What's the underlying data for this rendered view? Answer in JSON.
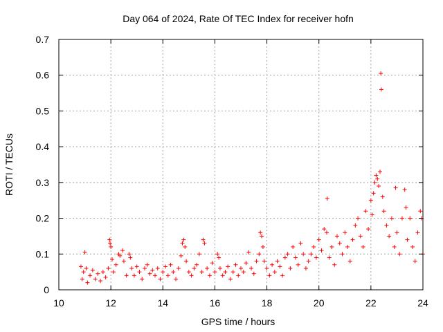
{
  "chart_data": {
    "type": "scatter",
    "title": "Day 064 of 2024, Rate Of TEC Index for receiver hofn",
    "xlabel": "GPS time / hours",
    "ylabel": "ROTI / TECUs",
    "xlim": [
      10,
      24
    ],
    "ylim": [
      0,
      0.7
    ],
    "x_ticks": [
      10,
      12,
      14,
      16,
      18,
      20,
      22,
      24
    ],
    "y_ticks": [
      0,
      0.1,
      0.2,
      0.3,
      0.4,
      0.5,
      0.6,
      0.7
    ],
    "x_tick_labels": [
      "10",
      "12",
      "14",
      "16",
      "18",
      "20",
      "22",
      "24"
    ],
    "y_tick_labels": [
      "0",
      "0.1",
      "0.2",
      "0.3",
      "0.4",
      "0.5",
      "0.6",
      "0.7"
    ],
    "grid": true,
    "marker": "+",
    "color": "#ff0000",
    "series": [
      {
        "values_description": "ROTI samples",
        "points": [
          [
            10.85,
            0.065
          ],
          [
            10.9,
            0.03
          ],
          [
            10.95,
            0.05
          ],
          [
            11.0,
            0.105
          ],
          [
            11.05,
            0.06
          ],
          [
            11.1,
            0.02
          ],
          [
            11.2,
            0.04
          ],
          [
            11.3,
            0.055
          ],
          [
            11.4,
            0.03
          ],
          [
            11.5,
            0.045
          ],
          [
            11.6,
            0.025
          ],
          [
            11.7,
            0.05
          ],
          [
            11.8,
            0.035
          ],
          [
            11.9,
            0.06
          ],
          [
            11.95,
            0.14
          ],
          [
            11.97,
            0.13
          ],
          [
            12.0,
            0.12
          ],
          [
            12.05,
            0.085
          ],
          [
            12.1,
            0.05
          ],
          [
            12.2,
            0.07
          ],
          [
            12.3,
            0.1
          ],
          [
            12.35,
            0.095
          ],
          [
            12.45,
            0.11
          ],
          [
            12.5,
            0.08
          ],
          [
            12.6,
            0.04
          ],
          [
            12.7,
            0.1
          ],
          [
            12.75,
            0.09
          ],
          [
            12.8,
            0.06
          ],
          [
            12.9,
            0.04
          ],
          [
            13.0,
            0.065
          ],
          [
            13.1,
            0.05
          ],
          [
            13.2,
            0.03
          ],
          [
            13.3,
            0.06
          ],
          [
            13.4,
            0.07
          ],
          [
            13.5,
            0.045
          ],
          [
            13.6,
            0.055
          ],
          [
            13.7,
            0.04
          ],
          [
            13.8,
            0.06
          ],
          [
            13.9,
            0.03
          ],
          [
            14.0,
            0.05
          ],
          [
            14.1,
            0.065
          ],
          [
            14.2,
            0.04
          ],
          [
            14.3,
            0.07
          ],
          [
            14.4,
            0.05
          ],
          [
            14.5,
            0.03
          ],
          [
            14.6,
            0.06
          ],
          [
            14.7,
            0.095
          ],
          [
            14.75,
            0.13
          ],
          [
            14.8,
            0.14
          ],
          [
            14.85,
            0.12
          ],
          [
            14.9,
            0.08
          ],
          [
            15.0,
            0.05
          ],
          [
            15.1,
            0.04
          ],
          [
            15.2,
            0.06
          ],
          [
            15.3,
            0.07
          ],
          [
            15.4,
            0.1
          ],
          [
            15.5,
            0.05
          ],
          [
            15.55,
            0.14
          ],
          [
            15.6,
            0.13
          ],
          [
            15.7,
            0.06
          ],
          [
            15.8,
            0.04
          ],
          [
            15.9,
            0.075
          ],
          [
            16.0,
            0.05
          ],
          [
            16.1,
            0.1
          ],
          [
            16.15,
            0.09
          ],
          [
            16.2,
            0.06
          ],
          [
            16.3,
            0.04
          ],
          [
            16.4,
            0.05
          ],
          [
            16.5,
            0.065
          ],
          [
            16.6,
            0.03
          ],
          [
            16.7,
            0.05
          ],
          [
            16.8,
            0.07
          ],
          [
            16.9,
            0.04
          ],
          [
            17.0,
            0.06
          ],
          [
            17.1,
            0.05
          ],
          [
            17.2,
            0.075
          ],
          [
            17.3,
            0.105
          ],
          [
            17.4,
            0.06
          ],
          [
            17.5,
            0.045
          ],
          [
            17.6,
            0.08
          ],
          [
            17.7,
            0.1
          ],
          [
            17.75,
            0.16
          ],
          [
            17.8,
            0.15
          ],
          [
            17.85,
            0.12
          ],
          [
            17.9,
            0.08
          ],
          [
            18.0,
            0.06
          ],
          [
            18.1,
            0.04
          ],
          [
            18.2,
            0.07
          ],
          [
            18.3,
            0.05
          ],
          [
            18.4,
            0.08
          ],
          [
            18.5,
            0.065
          ],
          [
            18.6,
            0.04
          ],
          [
            18.7,
            0.09
          ],
          [
            18.8,
            0.1
          ],
          [
            18.9,
            0.06
          ],
          [
            19.0,
            0.12
          ],
          [
            19.1,
            0.09
          ],
          [
            19.2,
            0.07
          ],
          [
            19.3,
            0.13
          ],
          [
            19.4,
            0.1
          ],
          [
            19.5,
            0.06
          ],
          [
            19.6,
            0.08
          ],
          [
            19.7,
            0.1
          ],
          [
            19.8,
            0.12
          ],
          [
            19.9,
            0.09
          ],
          [
            20.0,
            0.14
          ],
          [
            20.1,
            0.11
          ],
          [
            20.2,
            0.17
          ],
          [
            20.3,
            0.16
          ],
          [
            20.32,
            0.255
          ],
          [
            20.4,
            0.09
          ],
          [
            20.5,
            0.12
          ],
          [
            20.6,
            0.07
          ],
          [
            20.7,
            0.15
          ],
          [
            20.8,
            0.13
          ],
          [
            20.9,
            0.1
          ],
          [
            21.0,
            0.16
          ],
          [
            21.1,
            0.12
          ],
          [
            21.2,
            0.08
          ],
          [
            21.3,
            0.14
          ],
          [
            21.4,
            0.18
          ],
          [
            21.5,
            0.2
          ],
          [
            21.6,
            0.15
          ],
          [
            21.7,
            0.12
          ],
          [
            21.8,
            0.22
          ],
          [
            21.9,
            0.17
          ],
          [
            22.0,
            0.25
          ],
          [
            22.05,
            0.21
          ],
          [
            22.1,
            0.27
          ],
          [
            22.15,
            0.3
          ],
          [
            22.2,
            0.32
          ],
          [
            22.25,
            0.31
          ],
          [
            22.3,
            0.29
          ],
          [
            22.35,
            0.33
          ],
          [
            22.38,
            0.605
          ],
          [
            22.4,
            0.56
          ],
          [
            22.45,
            0.26
          ],
          [
            22.5,
            0.22
          ],
          [
            22.6,
            0.18
          ],
          [
            22.7,
            0.15
          ],
          [
            22.8,
            0.2
          ],
          [
            22.9,
            0.12
          ],
          [
            22.95,
            0.285
          ],
          [
            23.0,
            0.16
          ],
          [
            23.1,
            0.1
          ],
          [
            23.2,
            0.2
          ],
          [
            23.3,
            0.28
          ],
          [
            23.35,
            0.23
          ],
          [
            23.4,
            0.14
          ],
          [
            23.5,
            0.2
          ],
          [
            23.6,
            0.12
          ],
          [
            23.7,
            0.08
          ],
          [
            23.8,
            0.16
          ],
          [
            23.9,
            0.22
          ],
          [
            23.95,
            0.2
          ],
          [
            24.0,
            0.1
          ]
        ]
      }
    ]
  }
}
